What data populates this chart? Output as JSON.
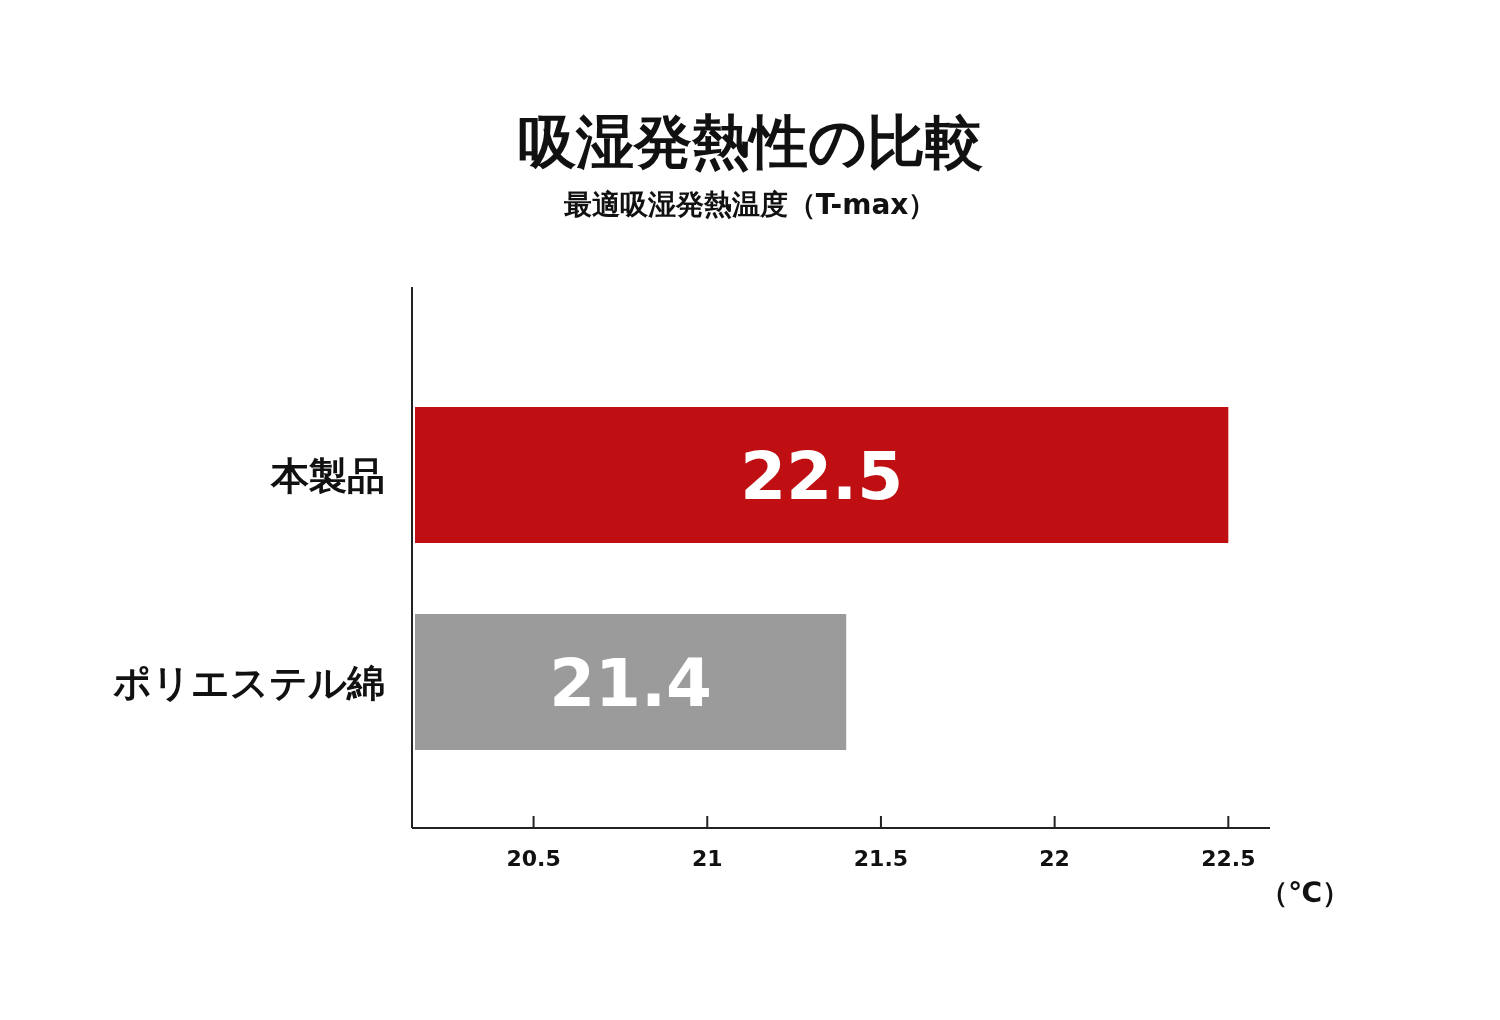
{
  "chart_data": {
    "type": "bar",
    "orientation": "horizontal",
    "title": "吸湿発熱性の比較",
    "subtitle": "最適吸湿発熱温度（T-max）",
    "xlabel": "（℃）",
    "categories": [
      "本製品",
      "ポリエステル綿"
    ],
    "values": [
      22.5,
      21.4
    ],
    "colors": [
      "#c00f12",
      "#9b9b9b"
    ],
    "xlim": [
      20.15,
      22.62
    ],
    "xticks": [
      20.5,
      21,
      21.5,
      22,
      22.5
    ],
    "data_labels": true
  }
}
